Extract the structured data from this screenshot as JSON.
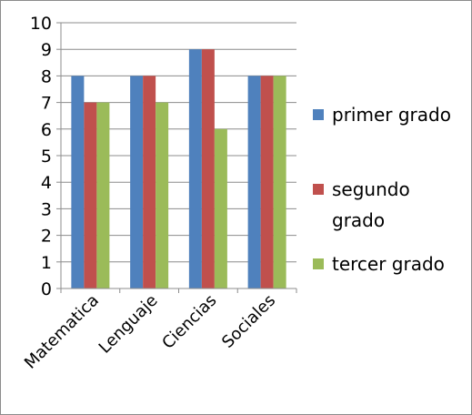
{
  "chart_data": {
    "type": "bar",
    "categories": [
      "Matematica",
      "Lenguaje",
      "Ciencias",
      "Sociales"
    ],
    "series": [
      {
        "name": "primer grado",
        "values": [
          8,
          8,
          9,
          8
        ],
        "color": "#4f81bd"
      },
      {
        "name": "segundo grado",
        "values": [
          7,
          8,
          9,
          8
        ],
        "color": "#c0504d"
      },
      {
        "name": "tercer grado",
        "values": [
          7,
          7,
          6,
          8
        ],
        "color": "#9bbb59"
      }
    ],
    "ylim": [
      0,
      10
    ],
    "yticks": [
      0,
      1,
      2,
      3,
      4,
      5,
      6,
      7,
      8,
      9,
      10
    ],
    "grid": true,
    "legend": "right"
  }
}
